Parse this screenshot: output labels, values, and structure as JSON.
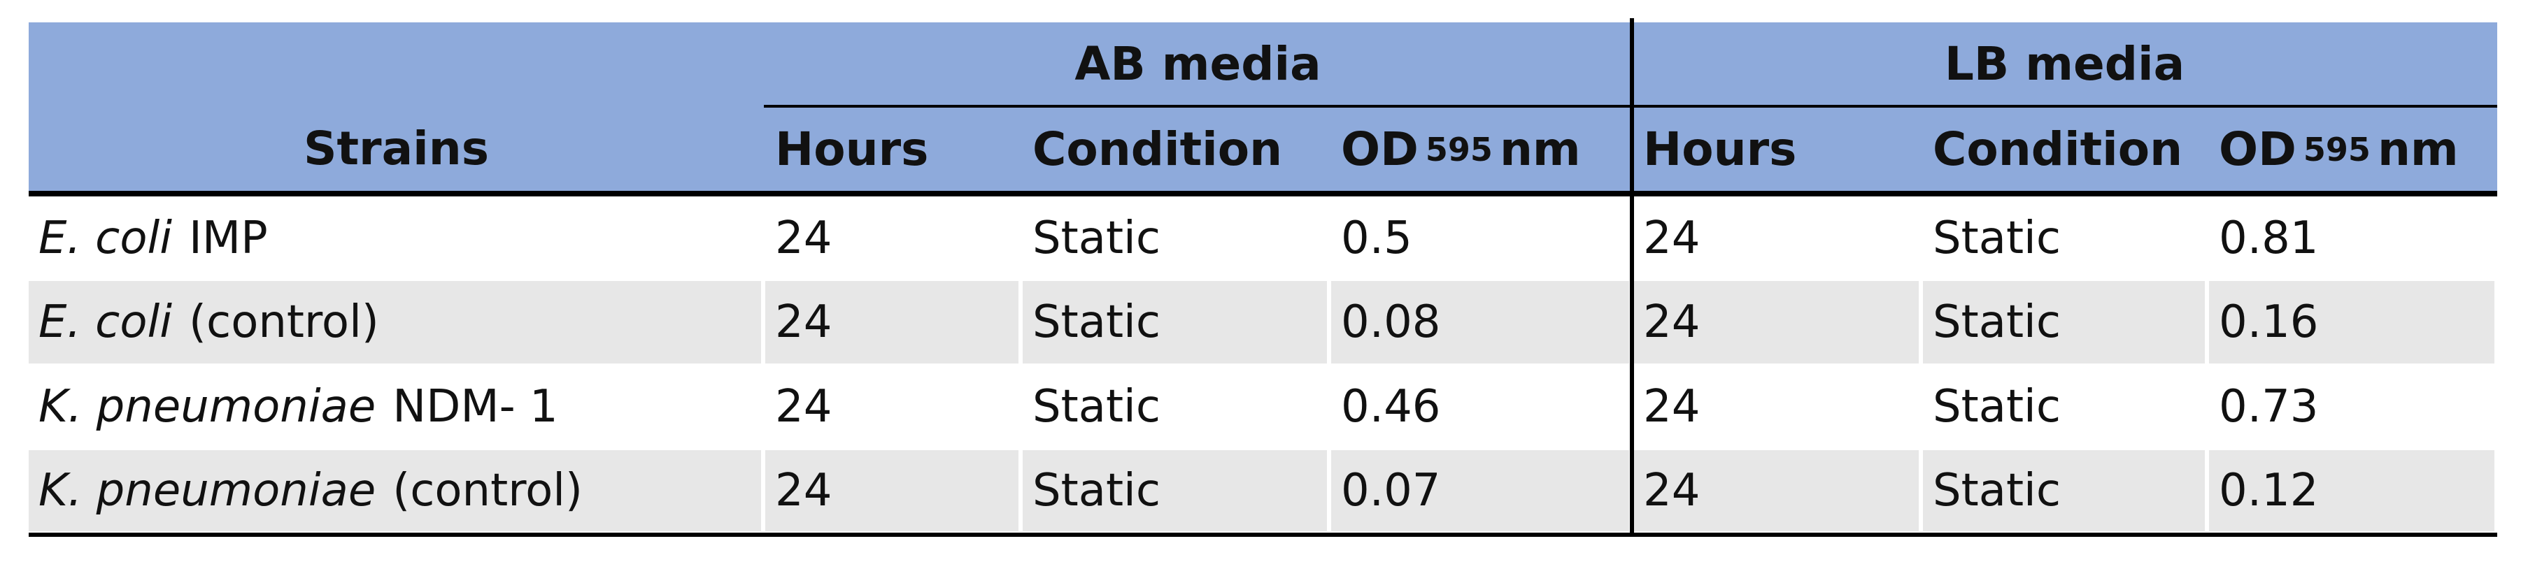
{
  "table": {
    "header": {
      "strains": "Strains",
      "groups": [
        {
          "title": "AB media",
          "columns": [
            "Hours",
            "Condition",
            {
              "main": "OD",
              "sub": "595",
              "unit": "nm"
            }
          ]
        },
        {
          "title": "LB media",
          "columns": [
            "Hours",
            "Condition",
            {
              "main": "OD",
              "sub": "595",
              "unit": "nm"
            }
          ]
        }
      ]
    },
    "rows": [
      {
        "strain": {
          "italic": "E. coli",
          "text": "IMP"
        },
        "cells": [
          24,
          "Static",
          0.5,
          24,
          "Static",
          0.81
        ]
      },
      {
        "strain": {
          "italic": "E. coli",
          "text": "(control)"
        },
        "cells": [
          24,
          "Static",
          0.08,
          24,
          "Static",
          0.16
        ]
      },
      {
        "strain": {
          "italic": "K. pneumoniae",
          "text": "NDM- 1"
        },
        "cells": [
          24,
          "Static",
          0.46,
          24,
          "Static",
          0.73
        ]
      },
      {
        "strain": {
          "italic": "K. pneumoniae",
          "text": "(control)"
        },
        "cells": [
          24,
          "Static",
          0.07,
          24,
          "Static",
          0.12
        ]
      }
    ]
  }
}
